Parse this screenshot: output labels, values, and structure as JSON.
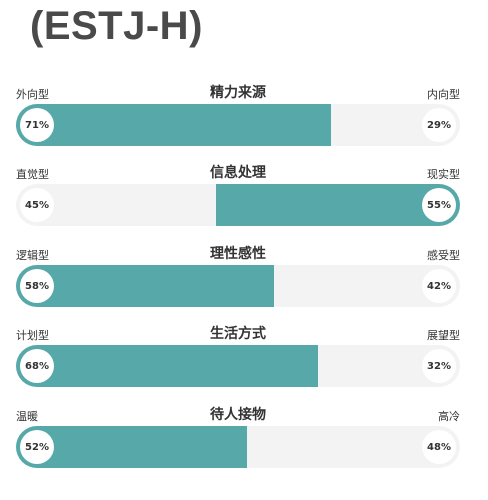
{
  "title": "(ESTJ-H)",
  "accent_color": "#56a8a9",
  "dimensions": [
    {
      "title": "精力来源",
      "left_label": "外向型",
      "right_label": "内向型",
      "left_pct": "71%",
      "right_pct": "29%",
      "left_value": 71,
      "dominant": "left"
    },
    {
      "title": "信息处理",
      "left_label": "直觉型",
      "right_label": "现实型",
      "left_pct": "45%",
      "right_pct": "55%",
      "left_value": 45,
      "dominant": "right"
    },
    {
      "title": "理性感性",
      "left_label": "逻辑型",
      "right_label": "感受型",
      "left_pct": "58%",
      "right_pct": "42%",
      "left_value": 58,
      "dominant": "left"
    },
    {
      "title": "生活方式",
      "left_label": "计划型",
      "right_label": "展望型",
      "left_pct": "68%",
      "right_pct": "32%",
      "left_value": 68,
      "dominant": "left"
    },
    {
      "title": "待人接物",
      "left_label": "温暖",
      "right_label": "高冷",
      "left_pct": "52%",
      "right_pct": "48%",
      "left_value": 52,
      "dominant": "left"
    }
  ]
}
